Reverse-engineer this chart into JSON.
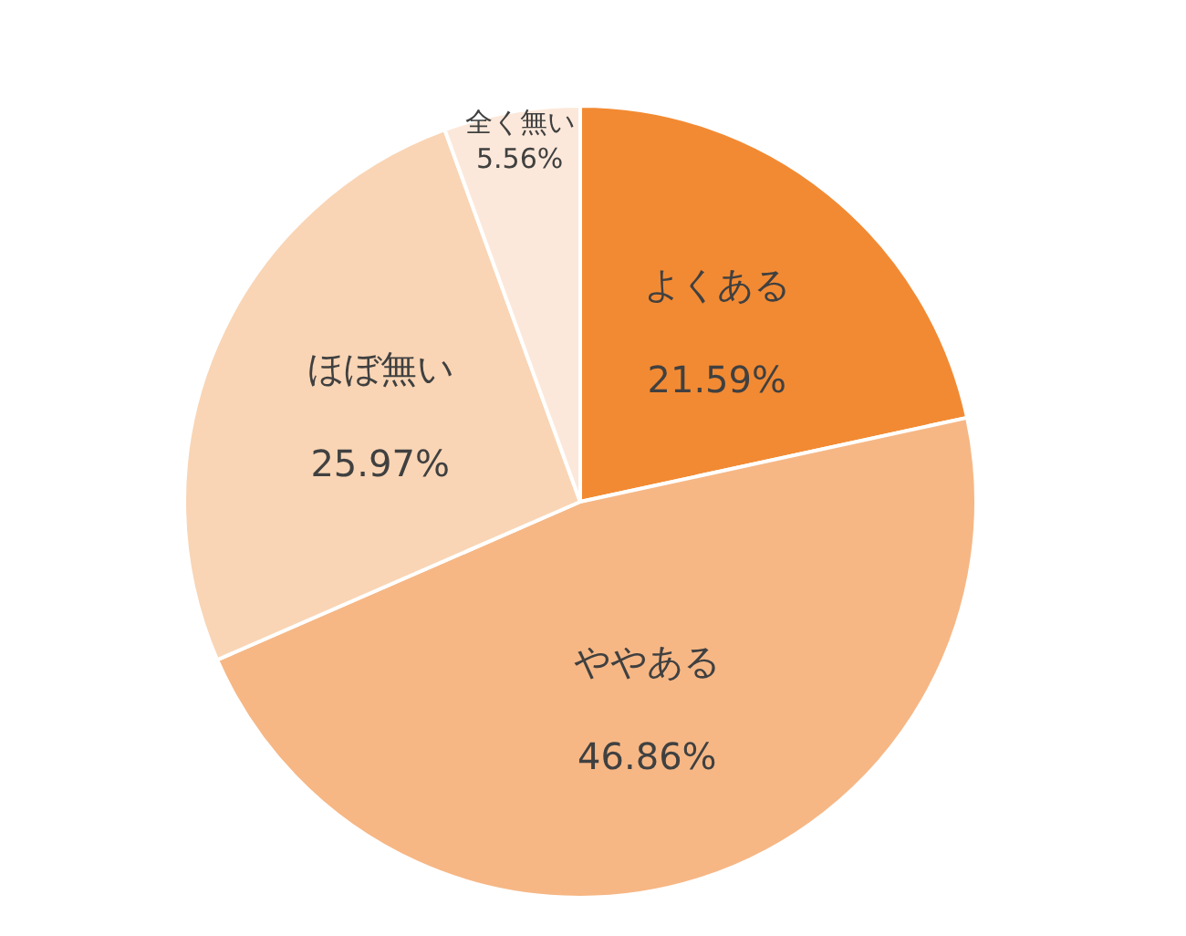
{
  "chart_data": {
    "type": "pie",
    "categories": [
      "よくある",
      "ややある",
      "ほぼ無い",
      "全く無い"
    ],
    "values": [
      21.59,
      46.86,
      25.97,
      5.56
    ],
    "value_labels": [
      "21.59%",
      "46.86%",
      "25.97%",
      "5.56%"
    ],
    "colors": [
      "#f28a33",
      "#f6b785",
      "#f9d5b5",
      "#fce8da"
    ],
    "legend": false
  }
}
